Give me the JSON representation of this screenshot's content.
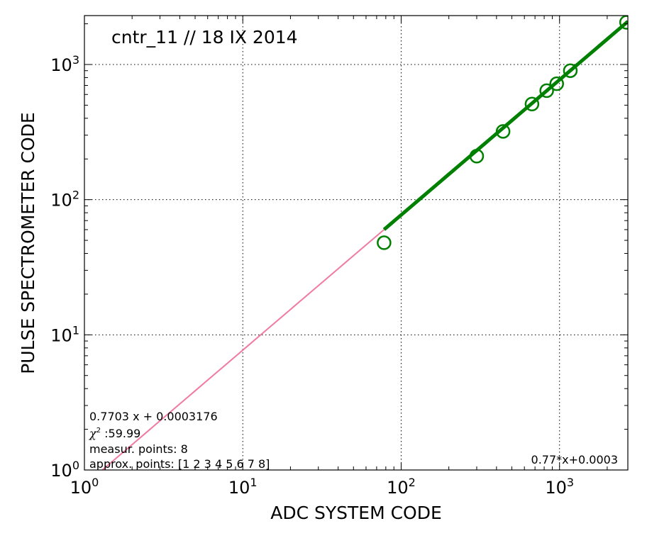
{
  "chart_data": {
    "type": "scatter",
    "title": "cntr_11 // 18 IX 2014",
    "xlabel": "ADC  SYSTEM  CODE",
    "ylabel": "PULSE  SPECTROMETER  CODE",
    "xscale": "log",
    "yscale": "log",
    "xlim": [
      1,
      2700
    ],
    "ylim": [
      1,
      2300
    ],
    "grid": true,
    "x_ticks": [
      {
        "base": "10",
        "exp": "0",
        "value": 1
      },
      {
        "base": "10",
        "exp": "1",
        "value": 10
      },
      {
        "base": "10",
        "exp": "2",
        "value": 100
      },
      {
        "base": "10",
        "exp": "3",
        "value": 1000
      }
    ],
    "y_ticks": [
      {
        "base": "10",
        "exp": "0",
        "value": 1
      },
      {
        "base": "10",
        "exp": "1",
        "value": 10
      },
      {
        "base": "10",
        "exp": "2",
        "value": 100
      },
      {
        "base": "10",
        "exp": "3",
        "value": 1000
      }
    ],
    "points": {
      "color": "#008000",
      "x": [
        78,
        300,
        440,
        670,
        830,
        960,
        1170,
        2650
      ],
      "y": [
        48,
        210,
        320,
        510,
        640,
        720,
        900,
        2050
      ]
    },
    "fit_line": {
      "color": "#008000",
      "slope": 0.7703,
      "intercept": 0.0003176,
      "x_range": [
        78,
        2700
      ]
    },
    "extrapolation_line": {
      "color": "#f07aa0",
      "slope": 0.7703,
      "intercept": 0.0003176,
      "x_range": [
        1,
        78
      ]
    },
    "annotations": {
      "fit_equation": "0.7703 x + 0.0003176",
      "chi2_symbol": "χ",
      "chi2_sup": "2",
      "chi2_value": " :59.99",
      "measured_points": "measur. points: 8",
      "approx_points": "approx. points: [1 2 3 4 5 6 7 8]",
      "legend_formula": "0.77*x+0.0003"
    }
  }
}
